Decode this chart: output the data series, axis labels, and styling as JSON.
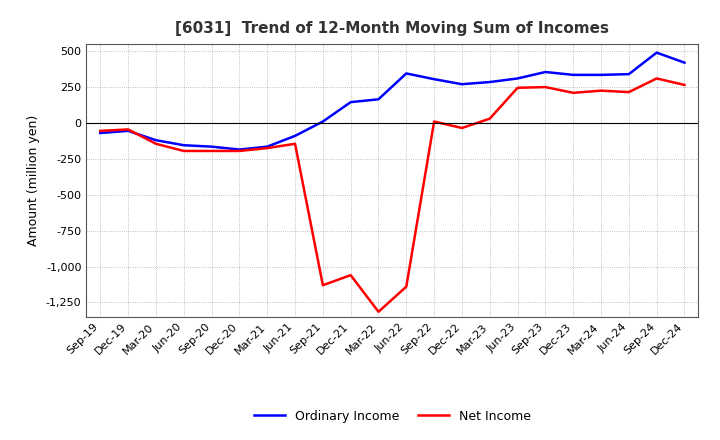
{
  "title": "[6031]  Trend of 12-Month Moving Sum of Incomes",
  "ylabel": "Amount (million yen)",
  "background_color": "#ffffff",
  "plot_bg_color": "#ffffff",
  "grid_color": "#999999",
  "x_labels": [
    "Sep-19",
    "Dec-19",
    "Mar-20",
    "Jun-20",
    "Sep-20",
    "Dec-20",
    "Mar-21",
    "Jun-21",
    "Sep-21",
    "Dec-21",
    "Mar-22",
    "Jun-22",
    "Sep-22",
    "Dec-22",
    "Mar-23",
    "Jun-23",
    "Sep-23",
    "Dec-23",
    "Mar-24",
    "Jun-24",
    "Sep-24",
    "Dec-24"
  ],
  "ordinary_income": [
    -70,
    -55,
    -120,
    -155,
    -165,
    -185,
    -165,
    -90,
    10,
    145,
    165,
    345,
    305,
    270,
    285,
    310,
    355,
    335,
    335,
    340,
    490,
    420
  ],
  "net_income": [
    -55,
    -45,
    -145,
    -195,
    -195,
    -195,
    -175,
    -145,
    -1130,
    -1060,
    -1315,
    -1140,
    10,
    -35,
    30,
    245,
    250,
    210,
    225,
    215,
    310,
    265
  ],
  "ordinary_color": "#0000ff",
  "net_color": "#ff0000",
  "ylim": [
    -1350,
    550
  ],
  "yticks": [
    500,
    250,
    0,
    -250,
    -500,
    -750,
    -1000,
    -1250
  ],
  "line_width": 1.8,
  "title_fontsize": 11,
  "tick_fontsize": 8,
  "ylabel_fontsize": 9,
  "legend_fontsize": 9
}
